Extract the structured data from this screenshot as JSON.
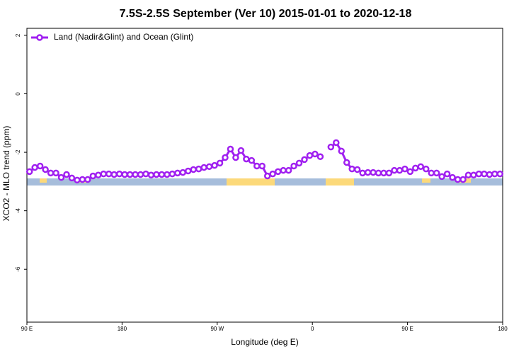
{
  "chart_data": {
    "type": "line",
    "title": "7.5S-2.5S September (Ver 10)   2015-01-01 to 2020-12-18",
    "x_label": "Longitude (deg E)",
    "y_label": "XCO2 - MLO trend (ppm)",
    "xlim": [
      90,
      540
    ],
    "xticks": [
      {
        "value": 90,
        "label": "90 E"
      },
      180,
      {
        "value": 270,
        "label": "90 W"
      },
      {
        "value": 360,
        "label": "0"
      },
      {
        "value": 450,
        "label": "90 E"
      },
      {
        "value": 540,
        "label": "180"
      }
    ],
    "ylim": [
      -7.81,
      2.24
    ],
    "yticks": [
      2,
      0,
      -2,
      -4,
      -6
    ],
    "legend": "top-left",
    "x": [
      92.5,
      97.5,
      102.5,
      107.5,
      112.5,
      117.5,
      122.5,
      127.5,
      132.5,
      137.5,
      142.5,
      147.5,
      152.5,
      157.5,
      162.5,
      167.5,
      172.5,
      177.5,
      182.5,
      187.5,
      192.5,
      197.5,
      202.5,
      207.5,
      212.5,
      217.5,
      222.5,
      227.5,
      232.5,
      237.5,
      242.5,
      247.5,
      252.5,
      257.5,
      262.5,
      267.5,
      272.5,
      277.5,
      282.5,
      287.5,
      292.5,
      297.5,
      302.5,
      307.5,
      312.5,
      317.5,
      322.5,
      327.5,
      332.5,
      337.5,
      342.5,
      347.5,
      352.5,
      357.5,
      362.5,
      367.5,
      372.5,
      377.5,
      382.5,
      387.5,
      392.5,
      397.5,
      402.5,
      407.5,
      412.5,
      417.5,
      422.5,
      427.5,
      432.5,
      437.5,
      442.5,
      447.5,
      452.5,
      457.5,
      462.5,
      467.5,
      472.5,
      477.5,
      482.5,
      487.5,
      492.5,
      497.5,
      502.5,
      507.5,
      512.5,
      517.5,
      522.5,
      527.5,
      532.5,
      537.5
    ],
    "series": [
      {
        "name": "Land (Nadir&Glint) and Ocean (Glint)",
        "color": "#a020f0",
        "values": [
          -2.66,
          -2.52,
          -2.47,
          -2.59,
          -2.71,
          -2.71,
          -2.86,
          -2.76,
          -2.88,
          -2.95,
          -2.93,
          -2.93,
          -2.81,
          -2.78,
          -2.74,
          -2.74,
          -2.76,
          -2.74,
          -2.76,
          -2.76,
          -2.76,
          -2.76,
          -2.74,
          -2.78,
          -2.76,
          -2.76,
          -2.76,
          -2.74,
          -2.71,
          -2.69,
          -2.64,
          -2.59,
          -2.57,
          -2.52,
          -2.49,
          -2.45,
          -2.37,
          -2.18,
          -1.89,
          -2.18,
          -1.94,
          -2.23,
          -2.28,
          -2.47,
          -2.47,
          -2.81,
          -2.74,
          -2.66,
          -2.62,
          -2.62,
          -2.47,
          -2.37,
          -2.25,
          -2.11,
          -2.06,
          -2.15,
          null,
          -1.82,
          -1.67,
          -1.96,
          -2.35,
          -2.57,
          -2.59,
          -2.71,
          -2.69,
          -2.69,
          -2.71,
          -2.71,
          -2.71,
          -2.62,
          -2.62,
          -2.57,
          -2.66,
          -2.54,
          -2.49,
          -2.57,
          -2.71,
          -2.71,
          -2.83,
          -2.74,
          -2.86,
          -2.93,
          -2.93,
          -2.78,
          -2.78,
          -2.74,
          -2.74,
          -2.76,
          -2.74,
          -2.74
        ]
      }
    ]
  }
}
